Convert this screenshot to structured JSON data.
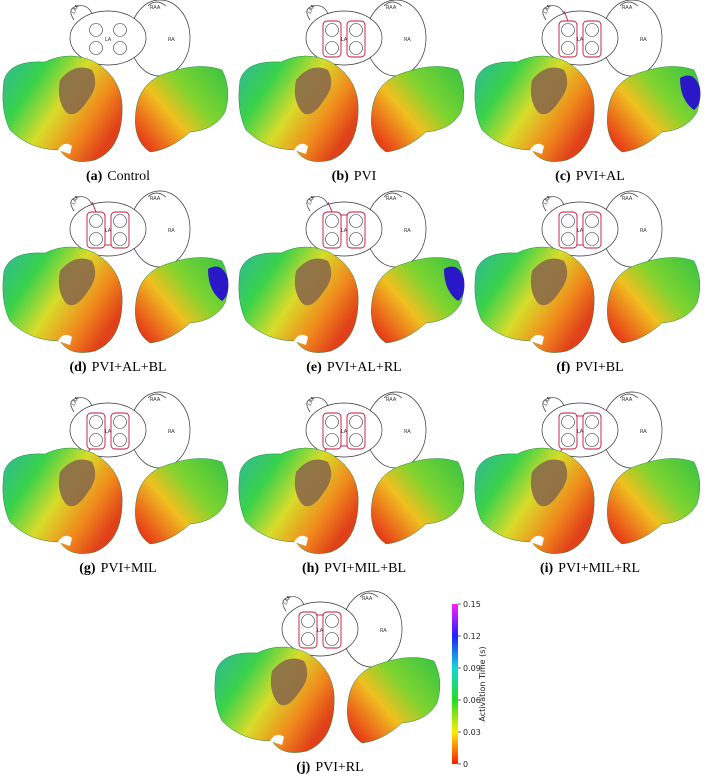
{
  "schematic_labels": {
    "laa": "LAA",
    "raa": "RAA",
    "la": "LA",
    "ra": "RA"
  },
  "panels": [
    {
      "label": "(a)",
      "caption": "Control"
    },
    {
      "label": "(b)",
      "caption": "PVI"
    },
    {
      "label": "(c)",
      "caption": "PVI+AL"
    },
    {
      "label": "(d)",
      "caption": "PVI+AL+BL"
    },
    {
      "label": "(e)",
      "caption": "PVI+AL+RL"
    },
    {
      "label": "(f)",
      "caption": "PVI+BL"
    },
    {
      "label": "(g)",
      "caption": "PVI+MIL"
    },
    {
      "label": "(h)",
      "caption": "PVI+MIL+BL"
    },
    {
      "label": "(i)",
      "caption": "PVI+MIL+RL"
    },
    {
      "label": "(j)",
      "caption": "PVI+RL"
    }
  ],
  "colorbar": {
    "title": "Activation Time (s)",
    "lim": [
      0,
      0.15
    ],
    "ticks": [
      0,
      0.03,
      0.06,
      0.09,
      0.12,
      0.15
    ]
  }
}
